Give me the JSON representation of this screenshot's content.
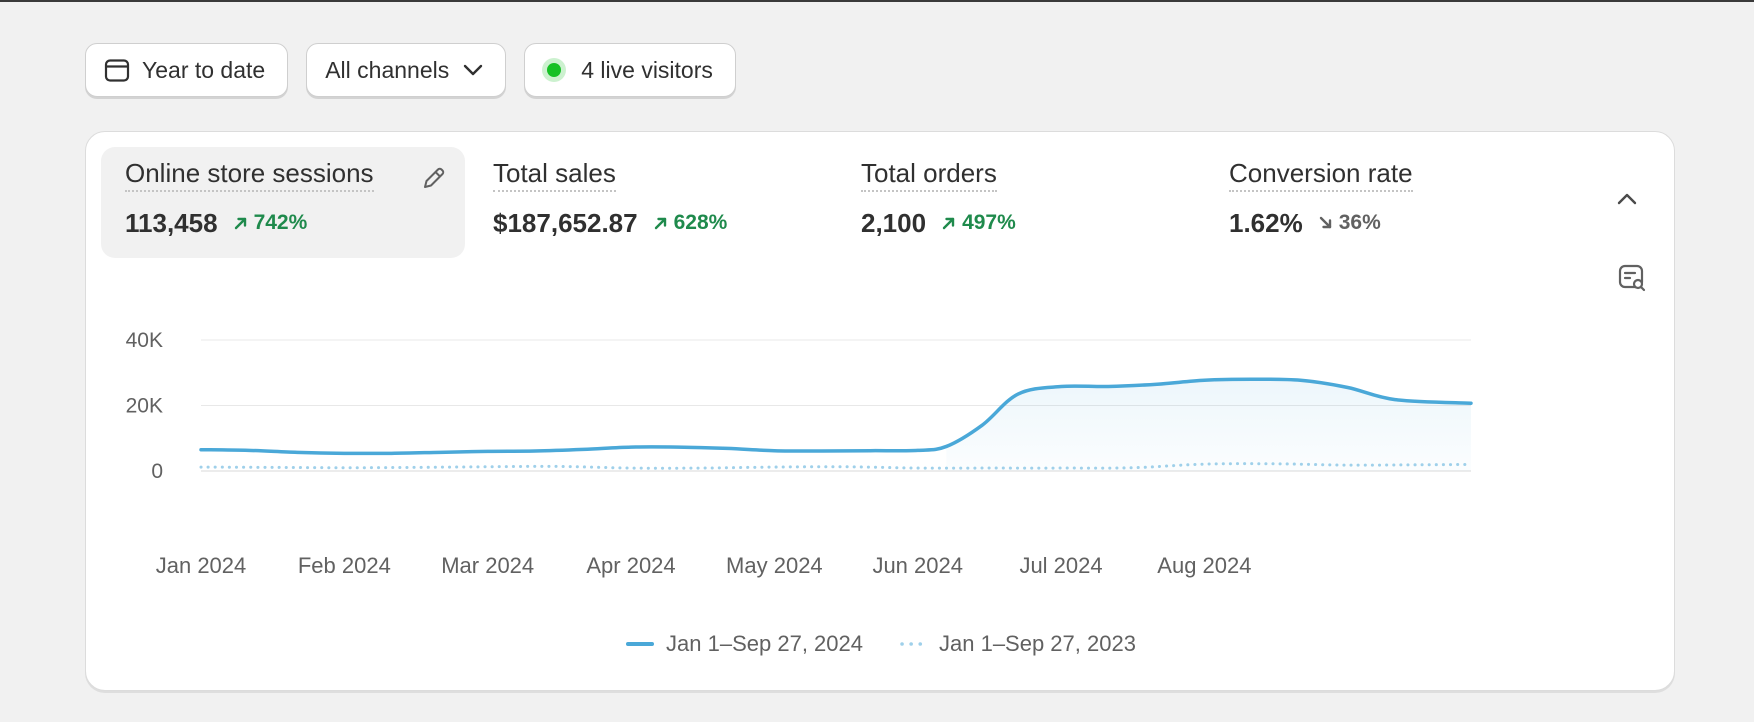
{
  "filters": {
    "date_range": "Year to date",
    "channel": "All channels",
    "live_visitors": "4 live visitors"
  },
  "metrics": [
    {
      "label": "Online store sessions",
      "value": "113,458",
      "delta": "742%",
      "trend": "up",
      "active": true
    },
    {
      "label": "Total sales",
      "value": "$187,652.87",
      "delta": "628%",
      "trend": "up",
      "active": false
    },
    {
      "label": "Total orders",
      "value": "2,100",
      "delta": "497%",
      "trend": "up",
      "active": false
    },
    {
      "label": "Conversion rate",
      "value": "1.62%",
      "delta": "36%",
      "trend": "down",
      "active": false
    }
  ],
  "colors": {
    "current": "#4aa8d8",
    "comparison": "#9fd0ea",
    "positive": "#1f8a4c",
    "neutral": "#616161",
    "live": "#16c125"
  },
  "chart_data": {
    "type": "line",
    "ylim": [
      0,
      40000
    ],
    "yticks": [
      {
        "value": 0,
        "label": "0"
      },
      {
        "value": 20000,
        "label": "20K"
      },
      {
        "value": 40000,
        "label": "40K"
      }
    ],
    "x_start": 0,
    "x_end": 8.86,
    "xticks": [
      {
        "value": 0,
        "label": "Jan 2024"
      },
      {
        "value": 1,
        "label": "Feb 2024"
      },
      {
        "value": 2,
        "label": "Mar 2024"
      },
      {
        "value": 3,
        "label": "Apr 2024"
      },
      {
        "value": 4,
        "label": "May 2024"
      },
      {
        "value": 5,
        "label": "Jun 2024"
      },
      {
        "value": 6,
        "label": "Jul 2024"
      },
      {
        "value": 7,
        "label": "Aug 2024"
      }
    ],
    "grid": true,
    "series": [
      {
        "name": "Jan 1–Sep 27, 2024",
        "style": "solid",
        "x": [
          0,
          0.33,
          0.67,
          1,
          1.33,
          1.67,
          2,
          2.33,
          2.67,
          3,
          3.33,
          3.67,
          4,
          4.33,
          4.67,
          5,
          5.2,
          5.45,
          5.7,
          6,
          6.33,
          6.67,
          7,
          7.33,
          7.67,
          8,
          8.33,
          8.86
        ],
        "values": [
          6500,
          6300,
          5700,
          5400,
          5400,
          5700,
          6000,
          6100,
          6600,
          7300,
          7300,
          6900,
          6200,
          6100,
          6200,
          6300,
          7500,
          14000,
          23500,
          25800,
          25800,
          26500,
          27700,
          28000,
          27700,
          25500,
          21800,
          20700
        ]
      },
      {
        "name": "Jan 1–Sep 27, 2023",
        "style": "dotted",
        "x": [
          0,
          0.5,
          1,
          1.5,
          2,
          2.5,
          3,
          3.5,
          4,
          4.5,
          5,
          5.5,
          6,
          6.5,
          7,
          7.5,
          8,
          8.5,
          8.86
        ],
        "values": [
          1200,
          1100,
          1000,
          1100,
          1300,
          1400,
          900,
          900,
          1200,
          1300,
          900,
          900,
          900,
          1000,
          2100,
          2200,
          1800,
          1900,
          2000
        ]
      }
    ]
  }
}
